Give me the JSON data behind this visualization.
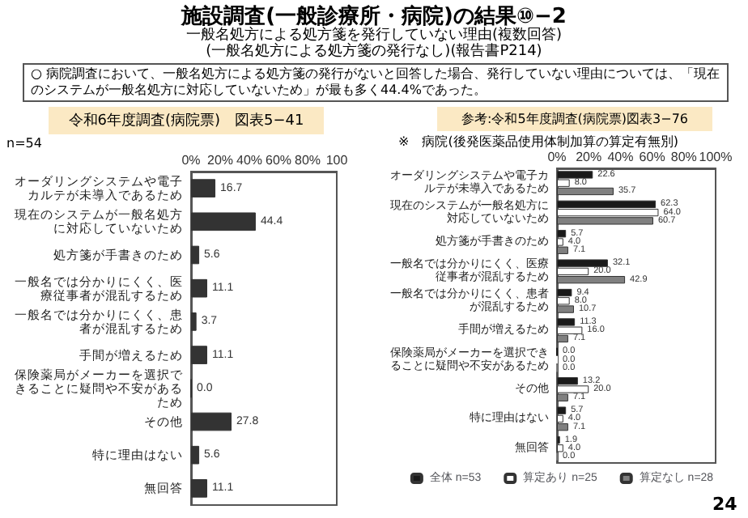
{
  "chart_data": [
    {
      "type": "bar",
      "orientation": "horizontal",
      "title": "施設調査(一般診療所・病院)の結果⑩−2",
      "subtitle": "一般名処方による処方箋を発行していない理由(複数回答)\n(一般名処方による処方箋の発行なし)(報告書P214)",
      "annotations": [
        "○ 病院調査において、一般名処方による処方箋の発行がないと回答した場合、発行していない理由については、「現在のシステムが一般名処方に対応していないため」が最も多く44.4%であった。",
        "令和6年度調査(病院票)　図表5−41",
        "n=54"
      ],
      "categories": [
        "オーダリングシステムや電子カルテが未導入であるため",
        "現在のシステムが一般名処方に対応していないため",
        "処方箋が手書きのため",
        "一般名では分かりにくく、医療従事者が混乱するため",
        "一般名では分かりにくく、患者が混乱するため",
        "手間が増えるため",
        "保険薬局がメーカーを選択できることに疑問や不安があるため",
        "その他",
        "特に理由はない",
        "無回答"
      ],
      "values": [
        16.7,
        44.4,
        5.6,
        11.1,
        3.7,
        11.1,
        0,
        27.8,
        5.6,
        11.1
      ],
      "value_labels": [
        "16.7",
        "44.4",
        "5.6",
        "11.1",
        "3.7",
        "11.1",
        "0.0",
        "27.8",
        "5.6",
        "11.1"
      ],
      "color": "#333333",
      "xlim": [
        0,
        100
      ],
      "xticks": [
        {
          "value": 0,
          "label": "0%"
        },
        {
          "value": 20,
          "label": "20%"
        },
        {
          "value": 40,
          "label": "40%"
        },
        {
          "value": 60,
          "label": "60%"
        },
        {
          "value": 80,
          "label": "80%"
        },
        {
          "value": 100,
          "label": "100"
        }
      ]
    },
    {
      "type": "bar",
      "orientation": "horizontal",
      "title": "参考:令和5年度調査(病院票)図表3−76",
      "subtitle": "※　病院(後発医薬品使用体制加算の算定有無別)",
      "annotations": [
        "24"
      ],
      "categories": [
        "オーダリングシステムや電子カルテが未導入であるため",
        "現在のシステムが一般名処方に対応していないため",
        "処方箋が手書きのため",
        "一般名では分かりにくく、医療従事者が混乱するため",
        "一般名では分かりにくく、患者が混乱するため",
        "手間が増えるため",
        "保険薬局がメーカーを選択できることに疑問や不安があるため",
        "その他",
        "特に理由はない",
        "無回答"
      ],
      "series": [
        {
          "name": "全体 n=53",
          "color": "#1a1a1a",
          "values": [
            22.6,
            62.3,
            5.7,
            32.1,
            9.4,
            11.3,
            0,
            13.2,
            5.7,
            1.9
          ],
          "value_labels": [
            "22.6",
            "62.3",
            "5.7",
            "32.1",
            "9.4",
            "11.3",
            "0.0",
            "13.2",
            "5.7",
            "1.9"
          ]
        },
        {
          "name": "算定あり n=25",
          "color": "#ffffff",
          "values": [
            8.0,
            64.0,
            4.0,
            20.0,
            8.0,
            16.0,
            0,
            20.0,
            4.0,
            4.0
          ],
          "value_labels": [
            "8.0",
            "64.0",
            "4.0",
            "20.0",
            "8.0",
            "16.0",
            "0.0",
            "20.0",
            "4.0",
            "4.0"
          ]
        },
        {
          "name": "算定なし n=28",
          "color": "#808080",
          "values": [
            35.7,
            60.7,
            7.1,
            42.9,
            10.7,
            7.1,
            0,
            7.1,
            7.1,
            0
          ],
          "value_labels": [
            "35.7",
            "60.7",
            "7.1",
            "42.9",
            "10.7",
            "7.1",
            "0.0",
            "7.1",
            "7.1",
            "0.0"
          ]
        }
      ],
      "legend": "bottom",
      "xlim": [
        0,
        100
      ],
      "xticks": [
        {
          "value": 0,
          "label": "0%"
        },
        {
          "value": 20,
          "label": "20%"
        },
        {
          "value": 40,
          "label": "40%"
        },
        {
          "value": 60,
          "label": "60%"
        },
        {
          "value": 80,
          "label": "80%"
        },
        {
          "value": 100,
          "label": "100%"
        }
      ]
    }
  ]
}
